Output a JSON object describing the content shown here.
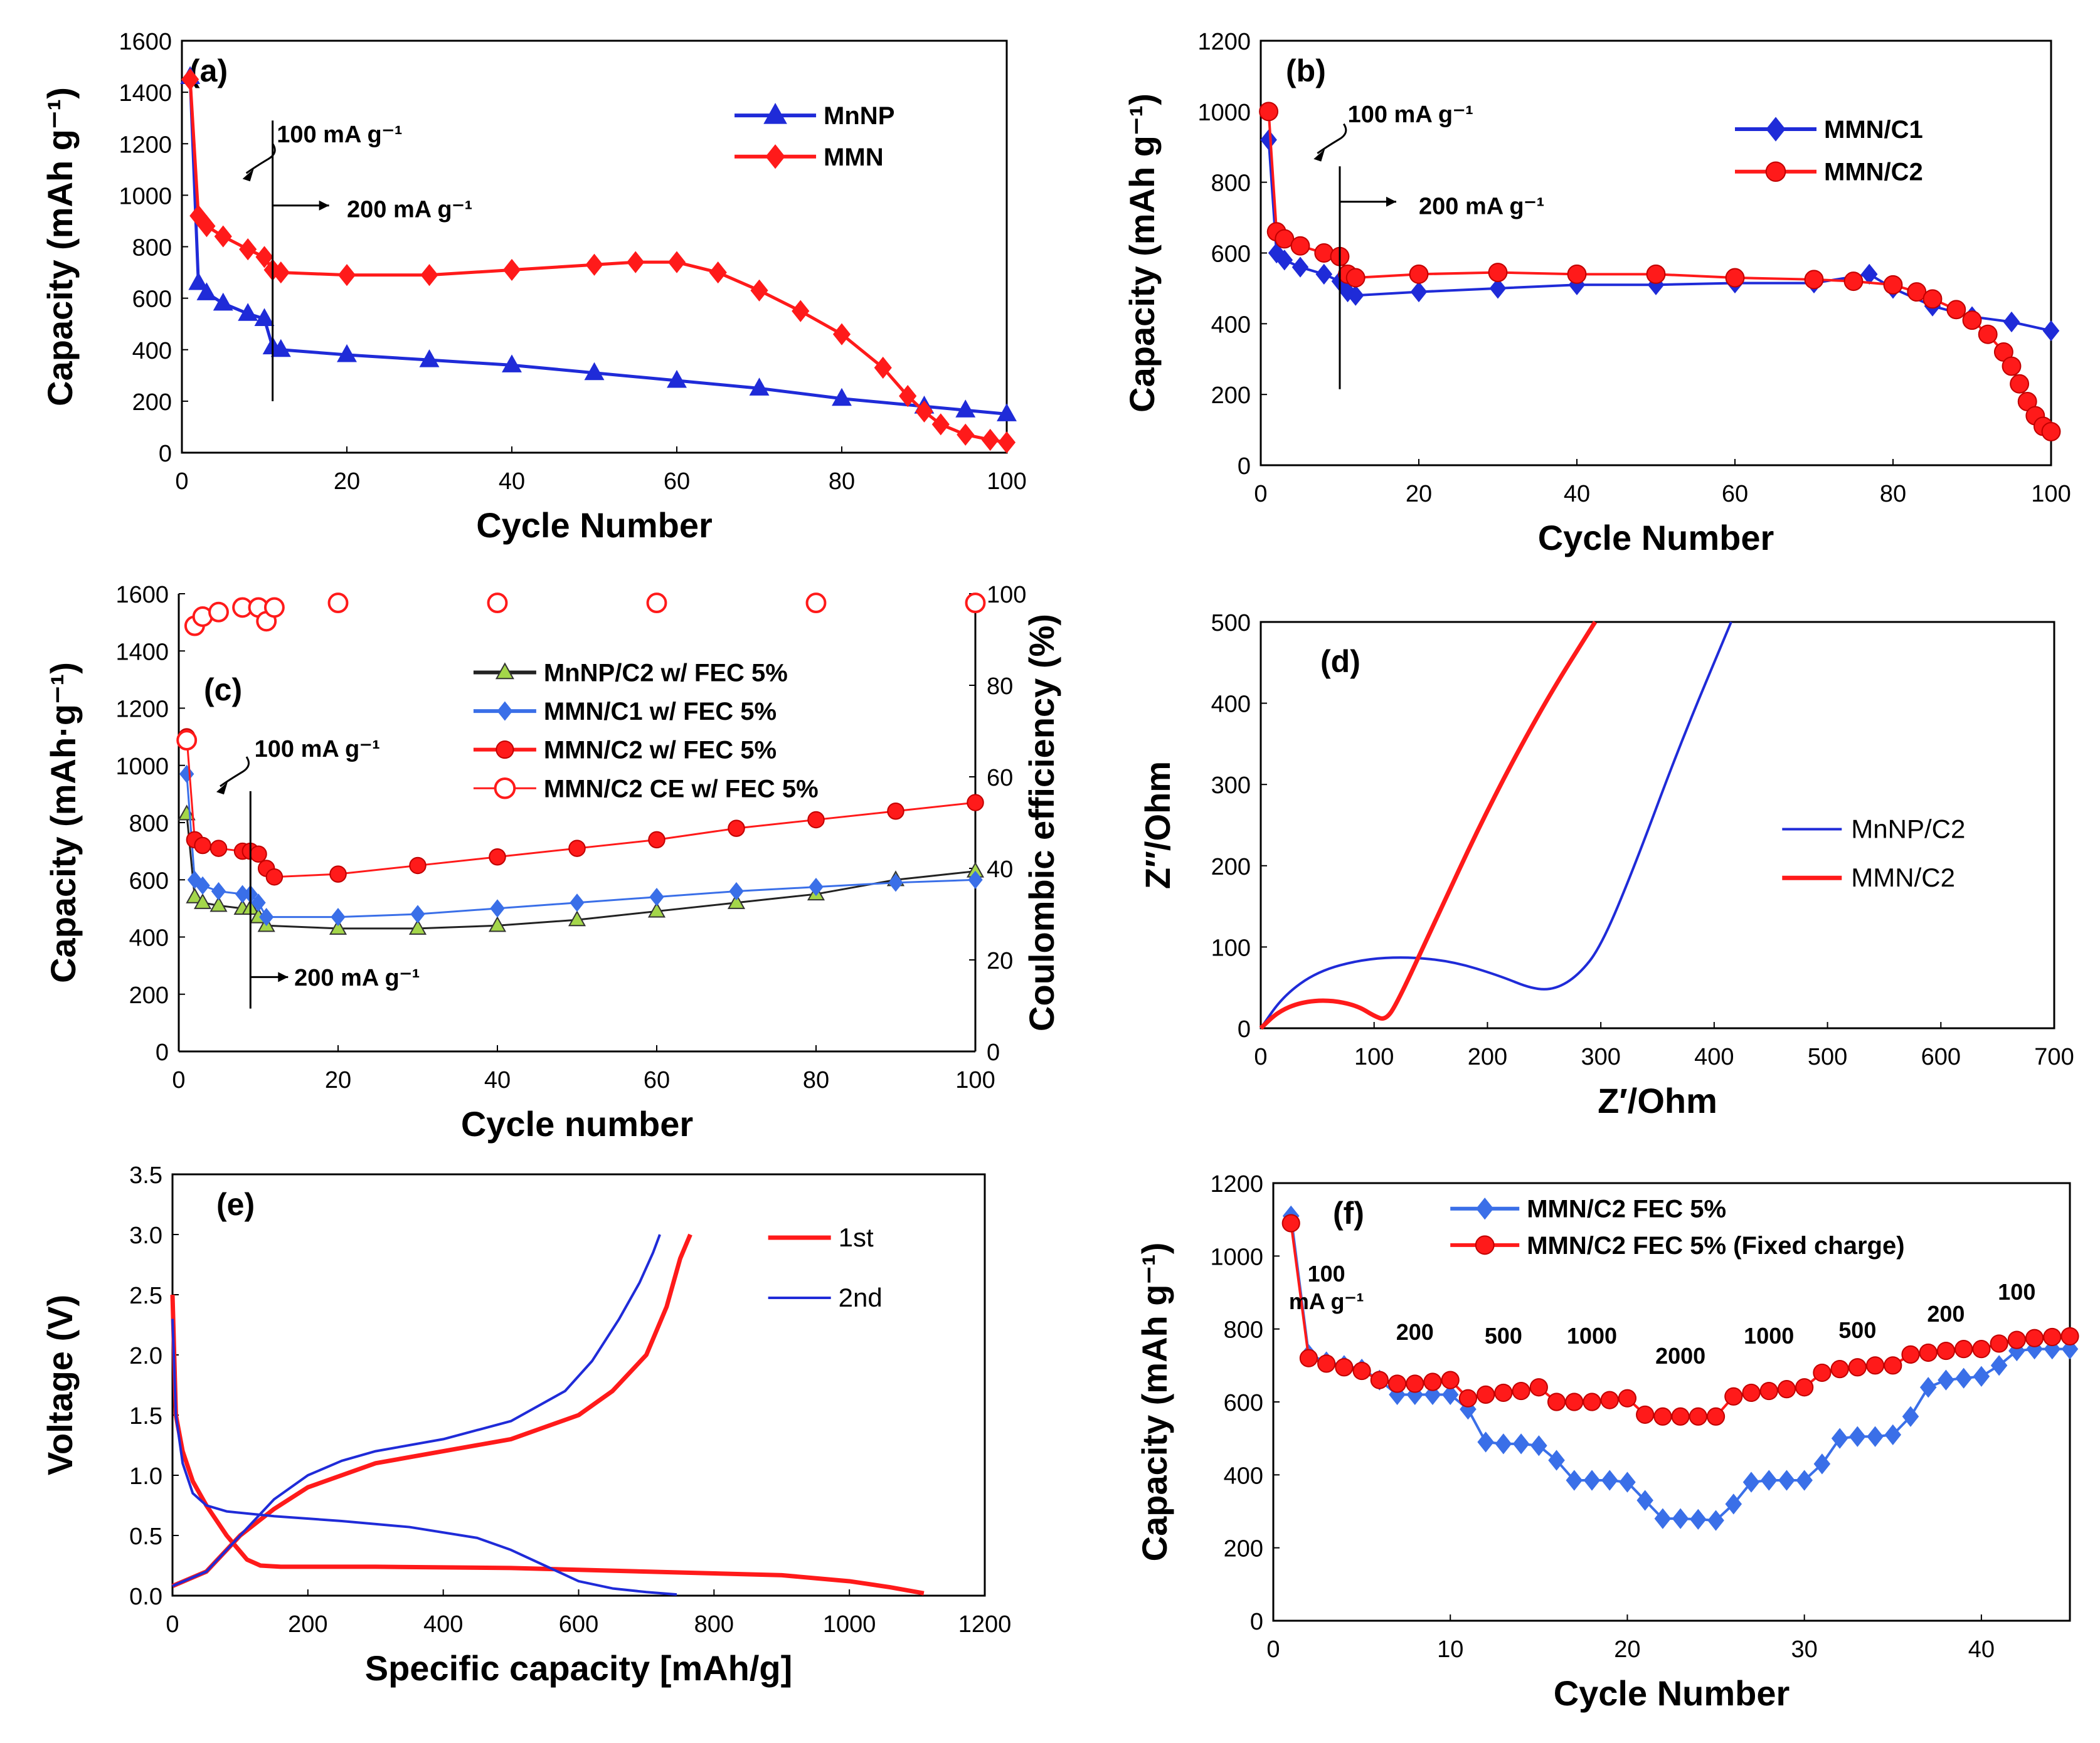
{
  "colors": {
    "blue": "#1f2bd8",
    "red": "#ff1a1a",
    "green": "#a4d64a",
    "black": "#000000",
    "diamondBlue": "#3a6fe8"
  },
  "chart_data": [
    {
      "id": "a",
      "type": "line",
      "panel_label": "(a)",
      "xlabel": "Cycle Number",
      "ylabel": "Capacity (mAh g⁻¹)",
      "xlim": [
        0,
        100
      ],
      "ylim": [
        0,
        1600
      ],
      "xticks": [
        0,
        20,
        40,
        60,
        80,
        100
      ],
      "yticks": [
        0,
        200,
        400,
        600,
        800,
        1000,
        1200,
        1400,
        1600
      ],
      "annotations": {
        "rate1": "100 mA g⁻¹",
        "rate2": "200 mA g⁻¹",
        "switch_cycle": 11
      },
      "series": [
        {
          "name": "MnNP",
          "marker": "triangle",
          "color": "#1f2bd8",
          "x": [
            1,
            2,
            3,
            5,
            8,
            10,
            11,
            12,
            20,
            30,
            40,
            50,
            60,
            70,
            80,
            90,
            95,
            100
          ],
          "values": [
            1460,
            660,
            620,
            580,
            540,
            520,
            410,
            400,
            380,
            360,
            340,
            310,
            280,
            250,
            210,
            180,
            165,
            150
          ]
        },
        {
          "name": "MMN",
          "marker": "diamond",
          "color": "#ff1a1a",
          "x": [
            1,
            2,
            3,
            5,
            8,
            10,
            11,
            12,
            20,
            30,
            40,
            50,
            55,
            60,
            65,
            70,
            75,
            80,
            85,
            88,
            90,
            92,
            95,
            98,
            100
          ],
          "values": [
            1450,
            920,
            880,
            840,
            790,
            760,
            710,
            700,
            690,
            690,
            710,
            730,
            740,
            740,
            700,
            630,
            550,
            460,
            330,
            220,
            160,
            110,
            70,
            50,
            40
          ]
        }
      ]
    },
    {
      "id": "b",
      "type": "line",
      "panel_label": "(b)",
      "xlabel": "Cycle Number",
      "ylabel": "Capacity (mAh g⁻¹)",
      "xlim": [
        0,
        100
      ],
      "ylim": [
        0,
        1200
      ],
      "xticks": [
        0,
        20,
        40,
        60,
        80,
        100
      ],
      "yticks": [
        0,
        200,
        400,
        600,
        800,
        1000,
        1200
      ],
      "annotations": {
        "rate1": "100 mA g⁻¹",
        "rate2": "200 mA g⁻¹",
        "switch_cycle": 10
      },
      "series": [
        {
          "name": "MMN/C1",
          "marker": "diamond",
          "color": "#1f2bd8",
          "x": [
            1,
            2,
            3,
            5,
            8,
            10,
            11,
            12,
            20,
            30,
            40,
            50,
            60,
            70,
            77,
            80,
            85,
            90,
            95,
            100
          ],
          "values": [
            920,
            600,
            580,
            560,
            540,
            520,
            490,
            480,
            490,
            500,
            510,
            510,
            515,
            515,
            540,
            500,
            450,
            420,
            405,
            380
          ]
        },
        {
          "name": "MMN/C2",
          "marker": "circle",
          "color": "#ff1a1a",
          "x": [
            1,
            2,
            3,
            5,
            8,
            10,
            11,
            12,
            20,
            30,
            40,
            50,
            60,
            70,
            75,
            80,
            83,
            85,
            88,
            90,
            92,
            94,
            95,
            96,
            97,
            98,
            99,
            100
          ],
          "values": [
            1000,
            660,
            640,
            620,
            600,
            590,
            540,
            530,
            540,
            545,
            540,
            540,
            530,
            525,
            520,
            510,
            490,
            470,
            440,
            410,
            370,
            320,
            280,
            230,
            180,
            140,
            110,
            95
          ]
        }
      ]
    },
    {
      "id": "c",
      "type": "line",
      "panel_label": "(c)",
      "xlabel": "Cycle number",
      "ylabel": "Capacity (mAh·g⁻¹)",
      "y2label": "Coulombic efficiency (%)",
      "xlim": [
        0,
        100
      ],
      "ylim": [
        0,
        1600
      ],
      "y2lim": [
        0,
        100
      ],
      "xticks": [
        0,
        20,
        40,
        60,
        80,
        100
      ],
      "yticks": [
        0,
        200,
        400,
        600,
        800,
        1000,
        1200,
        1400,
        1600
      ],
      "y2ticks": [
        0,
        20,
        40,
        60,
        80,
        100
      ],
      "annotations": {
        "rate1": "100 mA g⁻¹",
        "rate2": "200 mA g⁻¹",
        "switch_cycle": 9
      },
      "series": [
        {
          "name": "MnNP/C2 w/ FEC 5%",
          "marker": "triangle",
          "color": "#a4d64a",
          "x": [
            1,
            2,
            3,
            5,
            8,
            9,
            10,
            11,
            20,
            30,
            40,
            50,
            60,
            70,
            80,
            90,
            100
          ],
          "values": [
            830,
            540,
            520,
            510,
            500,
            500,
            470,
            440,
            430,
            430,
            440,
            460,
            490,
            520,
            550,
            600,
            630
          ]
        },
        {
          "name": "MMN/C1 w/ FEC 5%",
          "marker": "diamond",
          "color": "#3a6fe8",
          "x": [
            1,
            2,
            3,
            5,
            8,
            9,
            10,
            11,
            20,
            30,
            40,
            50,
            60,
            70,
            80,
            90,
            100
          ],
          "values": [
            970,
            600,
            580,
            560,
            550,
            550,
            520,
            470,
            470,
            480,
            500,
            520,
            540,
            560,
            575,
            590,
            600
          ]
        },
        {
          "name": "MMN/C2 w/ FEC 5%",
          "marker": "circle",
          "color": "#ff1a1a",
          "x": [
            1,
            2,
            3,
            5,
            8,
            9,
            10,
            11,
            12,
            20,
            30,
            40,
            50,
            60,
            70,
            80,
            90,
            100
          ],
          "values": [
            1100,
            740,
            720,
            710,
            700,
            700,
            690,
            640,
            610,
            620,
            650,
            680,
            710,
            740,
            780,
            810,
            840,
            870
          ]
        },
        {
          "name": "MMN/C2 CE w/ FEC 5%",
          "marker": "open-circle",
          "color": "#ff1a1a",
          "axis": "y2",
          "x": [
            1,
            2,
            3,
            5,
            8,
            10,
            11,
            12,
            20,
            40,
            60,
            80,
            100
          ],
          "values": [
            68,
            93,
            95,
            96,
            97,
            97,
            94,
            97,
            98,
            98,
            98,
            98,
            98
          ]
        }
      ]
    },
    {
      "id": "d",
      "type": "line",
      "panel_label": "(d)",
      "xlabel": "Z′/Ohm",
      "ylabel": "Z″/Ohm",
      "xlim": [
        0,
        700
      ],
      "ylim": [
        0,
        500
      ],
      "xticks": [
        0,
        100,
        200,
        300,
        400,
        500,
        600,
        700
      ],
      "yticks": [
        0,
        100,
        200,
        300,
        400,
        500
      ],
      "series": [
        {
          "name": "MnNP/C2",
          "color": "#1f2bd8",
          "x": [
            0,
            20,
            50,
            90,
            130,
            170,
            210,
            240,
            260,
            280,
            300,
            330,
            370,
            415
          ],
          "values": [
            0,
            40,
            70,
            85,
            88,
            82,
            65,
            48,
            48,
            65,
            100,
            200,
            350,
            500
          ]
        },
        {
          "name": "MMN/C2",
          "color": "#ff1a1a",
          "x": [
            0,
            15,
            35,
            60,
            85,
            100,
            110,
            120,
            150,
            200,
            250,
            295
          ],
          "values": [
            0,
            20,
            32,
            35,
            28,
            15,
            10,
            30,
            120,
            270,
            400,
            500
          ]
        }
      ]
    },
    {
      "id": "e",
      "type": "line",
      "panel_label": "(e)",
      "xlabel": "Specific capacity [mAh/g]",
      "ylabel": "Voltage (V)",
      "xlim": [
        0,
        1200
      ],
      "ylim": [
        0,
        3.5
      ],
      "xticks": [
        0,
        200,
        400,
        600,
        800,
        1000,
        1200
      ],
      "yticks": [
        0.0,
        0.5,
        1.0,
        1.5,
        2.0,
        2.5,
        3.0,
        3.5
      ],
      "series": [
        {
          "name": "1st",
          "color": "#ff1a1a",
          "curves": [
            {
              "x": [
                0,
                5,
                15,
                30,
                50,
                80,
                110,
                130,
                160,
                300,
                500,
                700,
                900,
                1000,
                1060,
                1110
              ],
              "values": [
                2.5,
                1.5,
                1.2,
                0.95,
                0.75,
                0.5,
                0.3,
                0.25,
                0.24,
                0.24,
                0.23,
                0.2,
                0.17,
                0.12,
                0.07,
                0.02
              ]
            },
            {
              "x": [
                0,
                50,
                100,
                150,
                200,
                300,
                400,
                500,
                600,
                650,
                700,
                730,
                750,
                765
              ],
              "values": [
                0.08,
                0.2,
                0.5,
                0.72,
                0.9,
                1.1,
                1.2,
                1.3,
                1.5,
                1.7,
                2.0,
                2.4,
                2.8,
                3.0
              ]
            }
          ]
        },
        {
          "name": "2nd",
          "color": "#1f2bd8",
          "curves": [
            {
              "x": [
                0,
                5,
                15,
                30,
                50,
                80,
                150,
                250,
                350,
                450,
                500,
                550,
                600,
                650,
                700,
                745
              ],
              "values": [
                2.3,
                1.5,
                1.1,
                0.85,
                0.75,
                0.7,
                0.66,
                0.62,
                0.57,
                0.48,
                0.38,
                0.25,
                0.12,
                0.06,
                0.03,
                0.01
              ]
            },
            {
              "x": [
                0,
                50,
                100,
                150,
                200,
                250,
                300,
                400,
                500,
                580,
                620,
                660,
                690,
                710,
                720
              ],
              "values": [
                0.08,
                0.2,
                0.5,
                0.8,
                1.0,
                1.12,
                1.2,
                1.3,
                1.45,
                1.7,
                1.95,
                2.3,
                2.6,
                2.85,
                3.0
              ]
            }
          ]
        }
      ]
    },
    {
      "id": "f",
      "type": "line",
      "panel_label": "(f)",
      "xlabel": "Cycle Number",
      "ylabel": "Capacity (mAh g⁻¹)",
      "xlim": [
        0,
        45
      ],
      "ylim": [
        0,
        1200
      ],
      "xticks": [
        0,
        10,
        20,
        30,
        40
      ],
      "yticks": [
        0,
        200,
        400,
        600,
        800,
        1000,
        1200
      ],
      "rate_labels": [
        {
          "lines": [
            "100",
            "mA g⁻¹"
          ],
          "cycle": 3
        },
        {
          "lines": [
            "200"
          ],
          "cycle": 8
        },
        {
          "lines": [
            "500"
          ],
          "cycle": 13
        },
        {
          "lines": [
            "1000"
          ],
          "cycle": 18
        },
        {
          "lines": [
            "2000"
          ],
          "cycle": 23
        },
        {
          "lines": [
            "1000"
          ],
          "cycle": 28
        },
        {
          "lines": [
            "500"
          ],
          "cycle": 33
        },
        {
          "lines": [
            "200"
          ],
          "cycle": 38
        },
        {
          "lines": [
            "100"
          ],
          "cycle": 42
        }
      ],
      "series": [
        {
          "name": "MMN/C2 FEC 5%",
          "marker": "diamond",
          "color": "#3a6fe8",
          "x": [
            1,
            2,
            3,
            4,
            5,
            6,
            7,
            8,
            9,
            10,
            11,
            12,
            13,
            14,
            15,
            16,
            17,
            18,
            19,
            20,
            21,
            22,
            23,
            24,
            25,
            26,
            27,
            28,
            29,
            30,
            31,
            32,
            33,
            34,
            35,
            36,
            37,
            38,
            39,
            40,
            41,
            42,
            43,
            44,
            45
          ],
          "values": [
            1110,
            730,
            710,
            700,
            690,
            660,
            620,
            620,
            620,
            620,
            580,
            490,
            485,
            485,
            480,
            440,
            385,
            385,
            385,
            380,
            330,
            280,
            280,
            278,
            275,
            320,
            380,
            385,
            385,
            385,
            430,
            500,
            505,
            505,
            510,
            560,
            640,
            660,
            665,
            670,
            700,
            740,
            745,
            745,
            745
          ]
        },
        {
          "name": "MMN/C2 FEC 5% (Fixed charge)",
          "marker": "circle",
          "color": "#ff1a1a",
          "x": [
            1,
            2,
            3,
            4,
            5,
            6,
            7,
            8,
            9,
            10,
            11,
            12,
            13,
            14,
            15,
            16,
            17,
            18,
            19,
            20,
            21,
            22,
            23,
            24,
            25,
            26,
            27,
            28,
            29,
            30,
            31,
            32,
            33,
            34,
            35,
            36,
            37,
            38,
            39,
            40,
            41,
            42,
            43,
            44,
            45
          ],
          "values": [
            1090,
            720,
            705,
            695,
            685,
            660,
            650,
            650,
            655,
            660,
            610,
            620,
            625,
            630,
            640,
            600,
            600,
            600,
            605,
            610,
            565,
            560,
            560,
            560,
            560,
            615,
            625,
            630,
            635,
            640,
            680,
            690,
            695,
            700,
            700,
            730,
            735,
            740,
            745,
            745,
            760,
            770,
            775,
            778,
            780
          ]
        }
      ]
    }
  ]
}
